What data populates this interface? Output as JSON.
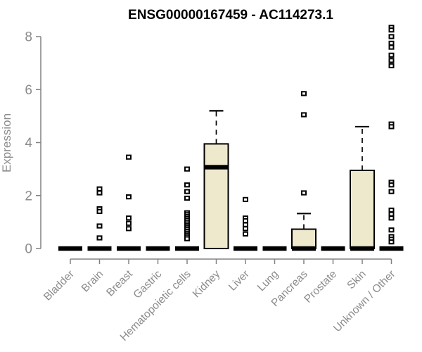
{
  "chart_data": {
    "type": "boxplot",
    "title": "ENSG00000167459 - AC114273.1",
    "ylabel": "Expression",
    "ylim": [
      0,
      8.5
    ],
    "yticks": [
      0,
      2,
      4,
      6,
      8
    ],
    "grid": false,
    "legend": "none",
    "colors": {
      "box_fill": "#EEE8CD",
      "box_border": "#000000",
      "median": "#000000",
      "whisker": "#000000",
      "axis": "#828282",
      "text": "#8b8b8b",
      "title": "#000000",
      "background": "#ffffff"
    },
    "categories": [
      "Bladder",
      "Brain",
      "Breast",
      "Gastric",
      "Hematopoietic cells",
      "Kidney",
      "Liver",
      "Lung",
      "Pancreas",
      "Prostate",
      "Skin",
      "Unknown / Other"
    ],
    "series": [
      {
        "category": "Bladder",
        "q1": 0,
        "median": 0,
        "q3": 0,
        "whisker_low": 0,
        "whisker_high": 0,
        "outliers": []
      },
      {
        "category": "Brain",
        "q1": 0,
        "median": 0,
        "q3": 0,
        "whisker_low": 0,
        "whisker_high": 0,
        "outliers": [
          2.25,
          2.1,
          1.5,
          1.4,
          0.85,
          0.4
        ]
      },
      {
        "category": "Breast",
        "q1": 0,
        "median": 0,
        "q3": 0,
        "whisker_low": 0,
        "whisker_high": 0,
        "outliers": [
          3.45,
          1.95,
          1.15,
          0.95,
          0.75
        ]
      },
      {
        "category": "Gastric",
        "q1": 0,
        "median": 0,
        "q3": 0,
        "whisker_low": 0,
        "whisker_high": 0,
        "outliers": []
      },
      {
        "category": "Hematopoietic cells",
        "q1": 0,
        "median": 0,
        "q3": 0,
        "whisker_low": 0,
        "whisker_high": 0,
        "outliers": [
          3.0,
          2.4,
          2.15,
          1.9,
          1.35,
          1.28,
          1.21,
          1.14,
          1.07,
          1.0,
          0.93,
          0.86,
          0.79,
          0.72,
          0.65,
          0.58,
          0.51,
          0.44,
          0.37
        ]
      },
      {
        "category": "Kidney",
        "q1": 0,
        "median": 3.07,
        "q3": 3.95,
        "whisker_low": 0,
        "whisker_high": 5.2,
        "outliers": []
      },
      {
        "category": "Liver",
        "q1": 0,
        "median": 0,
        "q3": 0,
        "whisker_low": 0,
        "whisker_high": 0,
        "outliers": [
          1.85,
          1.15,
          1.05,
          0.9,
          0.75,
          0.55
        ]
      },
      {
        "category": "Lung",
        "q1": 0,
        "median": 0,
        "q3": 0,
        "whisker_low": 0,
        "whisker_high": 0,
        "outliers": []
      },
      {
        "category": "Pancreas",
        "q1": 0,
        "median": 0,
        "q3": 0.73,
        "whisker_low": 0,
        "whisker_high": 1.32,
        "outliers": [
          5.85,
          5.05,
          2.1
        ]
      },
      {
        "category": "Prostate",
        "q1": 0,
        "median": 0,
        "q3": 0,
        "whisker_low": 0,
        "whisker_high": 0,
        "outliers": []
      },
      {
        "category": "Skin",
        "q1": 0,
        "median": 0,
        "q3": 2.95,
        "whisker_low": 0,
        "whisker_high": 4.6,
        "outliers": []
      },
      {
        "category": "Unknown / Other",
        "q1": 0,
        "median": 0,
        "q3": 0,
        "whisker_low": 0,
        "whisker_high": 0,
        "outliers": [
          8.35,
          8.25,
          8.0,
          7.75,
          7.6,
          7.3,
          7.1,
          6.9,
          4.7,
          4.6,
          2.5,
          2.4,
          2.15,
          1.45,
          1.3,
          1.15,
          0.7,
          0.45,
          0.35,
          0.25
        ]
      }
    ]
  }
}
